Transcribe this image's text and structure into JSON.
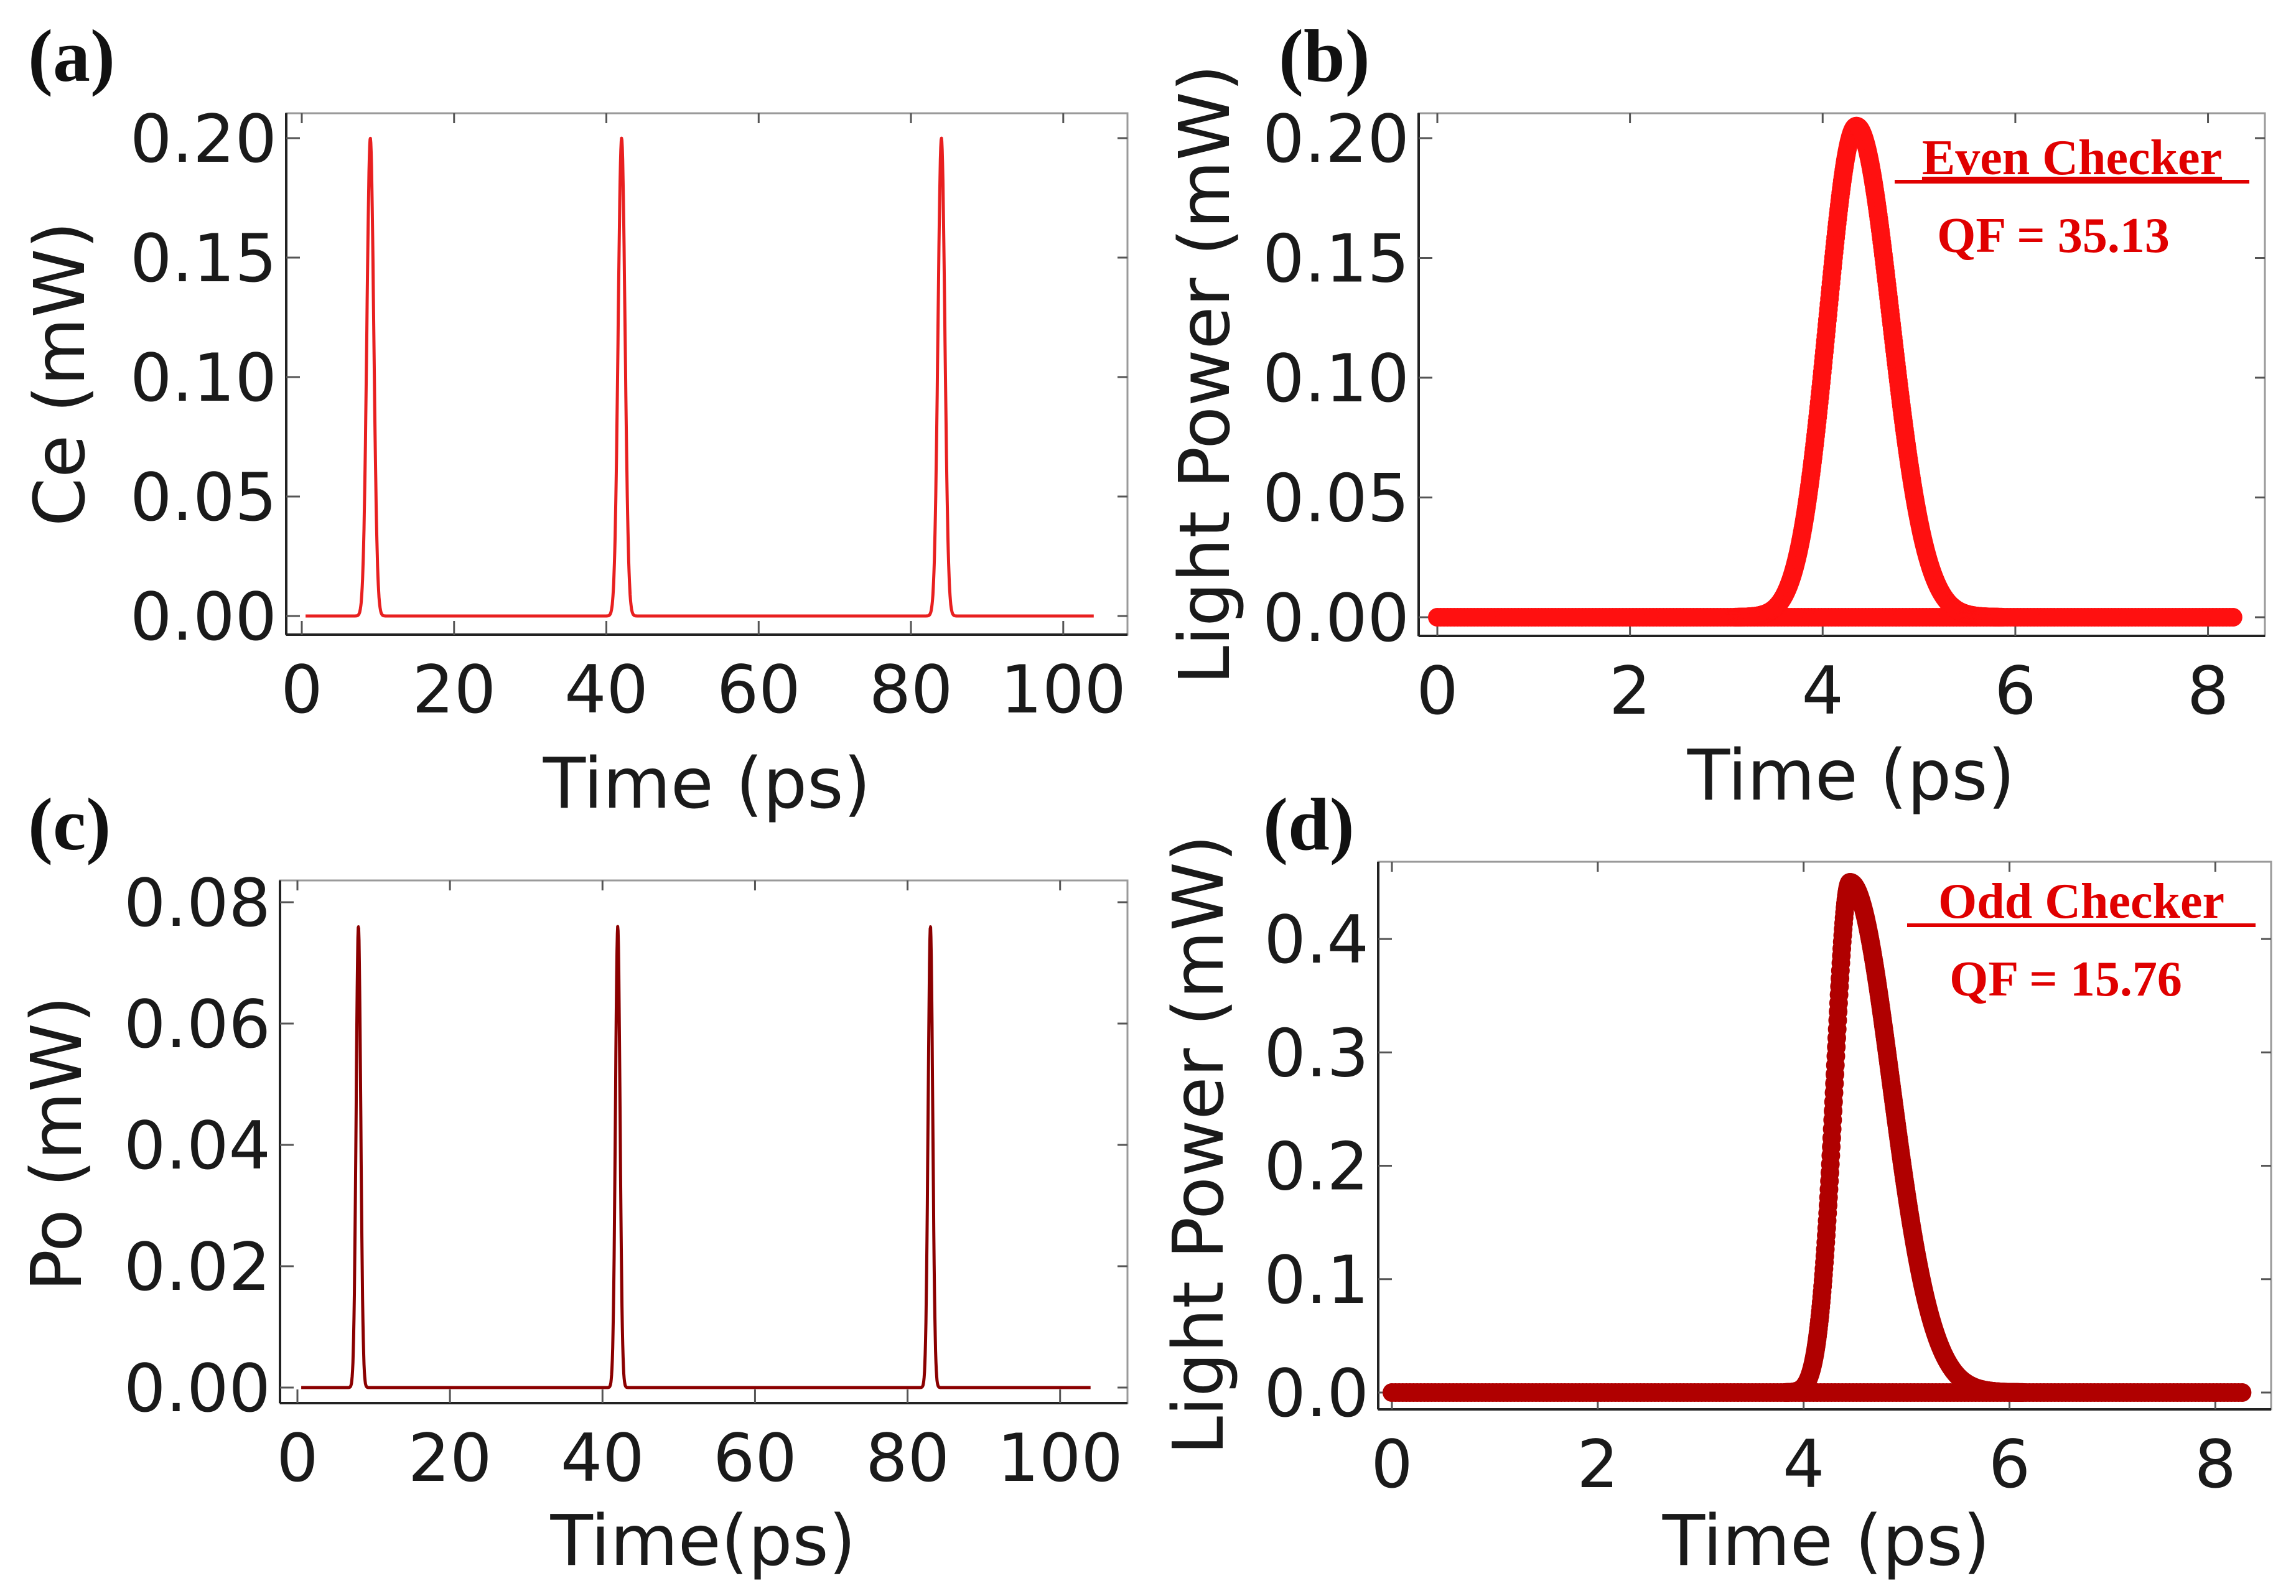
{
  "chart_data": [
    {
      "panel": "(a)",
      "type": "line",
      "xlabel": "Time (ps)",
      "ylabel": "Ce (mW)",
      "xlim": [
        0,
        105
      ],
      "ylim": [
        0,
        0.2
      ],
      "xticks": [
        0,
        20,
        40,
        60,
        80,
        100
      ],
      "yticks": [
        0.0,
        0.05,
        0.1,
        0.15,
        0.2
      ],
      "xtick_labels": [
        "0",
        "20",
        "40",
        "60",
        "80",
        "100"
      ],
      "ytick_labels": [
        "0.00",
        "0.05",
        "0.10",
        "0.15",
        "0.20"
      ],
      "color": "#e82020",
      "series": [
        {
          "name": "Ce",
          "peaks": [
            {
              "x": 9,
              "y": 0.2
            },
            {
              "x": 42,
              "y": 0.2
            },
            {
              "x": 84,
              "y": 0.2
            }
          ],
          "baseline": 0.0,
          "width": 0.9
        }
      ]
    },
    {
      "panel": "(b)",
      "type": "scatter",
      "xlabel": "Time (ps)",
      "ylabel": "Light Power (mW)",
      "xlim": [
        0,
        8.3
      ],
      "ylim": [
        0,
        0.2
      ],
      "xticks": [
        0,
        2,
        4,
        6,
        8
      ],
      "yticks": [
        0.0,
        0.05,
        0.1,
        0.15,
        0.2
      ],
      "xtick_labels": [
        "0",
        "2",
        "4",
        "6",
        "8"
      ],
      "ytick_labels": [
        "0.00",
        "0.05",
        "0.10",
        "0.15",
        "0.20"
      ],
      "color": "#ff1010",
      "annotation_title": "Even Checker",
      "annotation_qf": "QF = 35.13",
      "series": [
        {
          "name": "Even Checker eye",
          "center": 4.35,
          "peak": 0.205,
          "rise_sigma": 0.3,
          "fall_sigma": 0.36
        }
      ]
    },
    {
      "panel": "(c)",
      "type": "line",
      "xlabel": "Time(ps)",
      "ylabel": "Po (mW)",
      "xlim": [
        0,
        105
      ],
      "ylim": [
        0,
        0.08
      ],
      "xticks": [
        0,
        20,
        40,
        60,
        80,
        100
      ],
      "yticks": [
        0.0,
        0.02,
        0.04,
        0.06,
        0.08
      ],
      "xtick_labels": [
        "0",
        "20",
        "40",
        "60",
        "80",
        "100"
      ],
      "ytick_labels": [
        "0.00",
        "0.02",
        "0.04",
        "0.06",
        "0.08"
      ],
      "color": "#8b0000",
      "series": [
        {
          "name": "Po",
          "peaks": [
            {
              "x": 8,
              "y": 0.076
            },
            {
              "x": 42,
              "y": 0.076
            },
            {
              "x": 83,
              "y": 0.076
            }
          ],
          "baseline": 0.0,
          "width": 0.6
        }
      ]
    },
    {
      "panel": "(d)",
      "type": "scatter",
      "xlabel": "Time (ps)",
      "ylabel": "Light Power (mW)",
      "xlim": [
        0,
        8.3
      ],
      "ylim": [
        0,
        0.45
      ],
      "xticks": [
        0,
        2,
        4,
        6,
        8
      ],
      "yticks": [
        0.0,
        0.1,
        0.2,
        0.3,
        0.4
      ],
      "xtick_labels": [
        "0",
        "2",
        "4",
        "6",
        "8"
      ],
      "ytick_labels": [
        "0.0",
        "0.1",
        "0.2",
        "0.3",
        "0.4"
      ],
      "color": "#b00000",
      "annotation_title": "Odd Checker",
      "annotation_qf": "QF = 15.76",
      "series": [
        {
          "name": "Odd Checker eye",
          "center": 4.45,
          "peak": 0.45,
          "rise_sigma": 0.15,
          "fall_sigma": 0.4
        }
      ]
    }
  ]
}
